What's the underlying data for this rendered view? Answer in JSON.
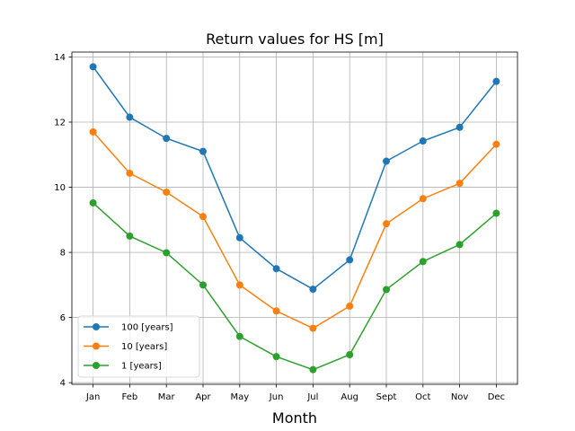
{
  "chart_data": {
    "type": "line",
    "title": "Return values for HS [m]",
    "xlabel": "Month",
    "ylabel": "",
    "categories": [
      "Jan",
      "Feb",
      "Mar",
      "Apr",
      "May",
      "Jun",
      "Jul",
      "Aug",
      "Sept",
      "Oct",
      "Nov",
      "Dec"
    ],
    "ylim": [
      3.95,
      14.15
    ],
    "yticks": [
      4,
      6,
      8,
      10,
      12,
      14
    ],
    "grid": true,
    "legend_position": "lower-left",
    "series": [
      {
        "name": "100 [years]",
        "color": "#1f77b4",
        "values": [
          13.7,
          12.15,
          11.5,
          11.1,
          8.45,
          7.5,
          6.87,
          7.77,
          10.8,
          11.42,
          11.84,
          13.25
        ]
      },
      {
        "name": "10 [years]",
        "color": "#ff7f0e",
        "values": [
          11.7,
          10.43,
          9.85,
          9.1,
          7.0,
          6.2,
          5.67,
          6.35,
          8.88,
          9.65,
          10.12,
          11.32
        ]
      },
      {
        "name": "1 [years]",
        "color": "#2ca02c",
        "values": [
          9.52,
          8.5,
          7.99,
          7.0,
          5.42,
          4.8,
          4.4,
          4.86,
          6.86,
          7.72,
          8.24,
          9.2
        ]
      }
    ]
  }
}
